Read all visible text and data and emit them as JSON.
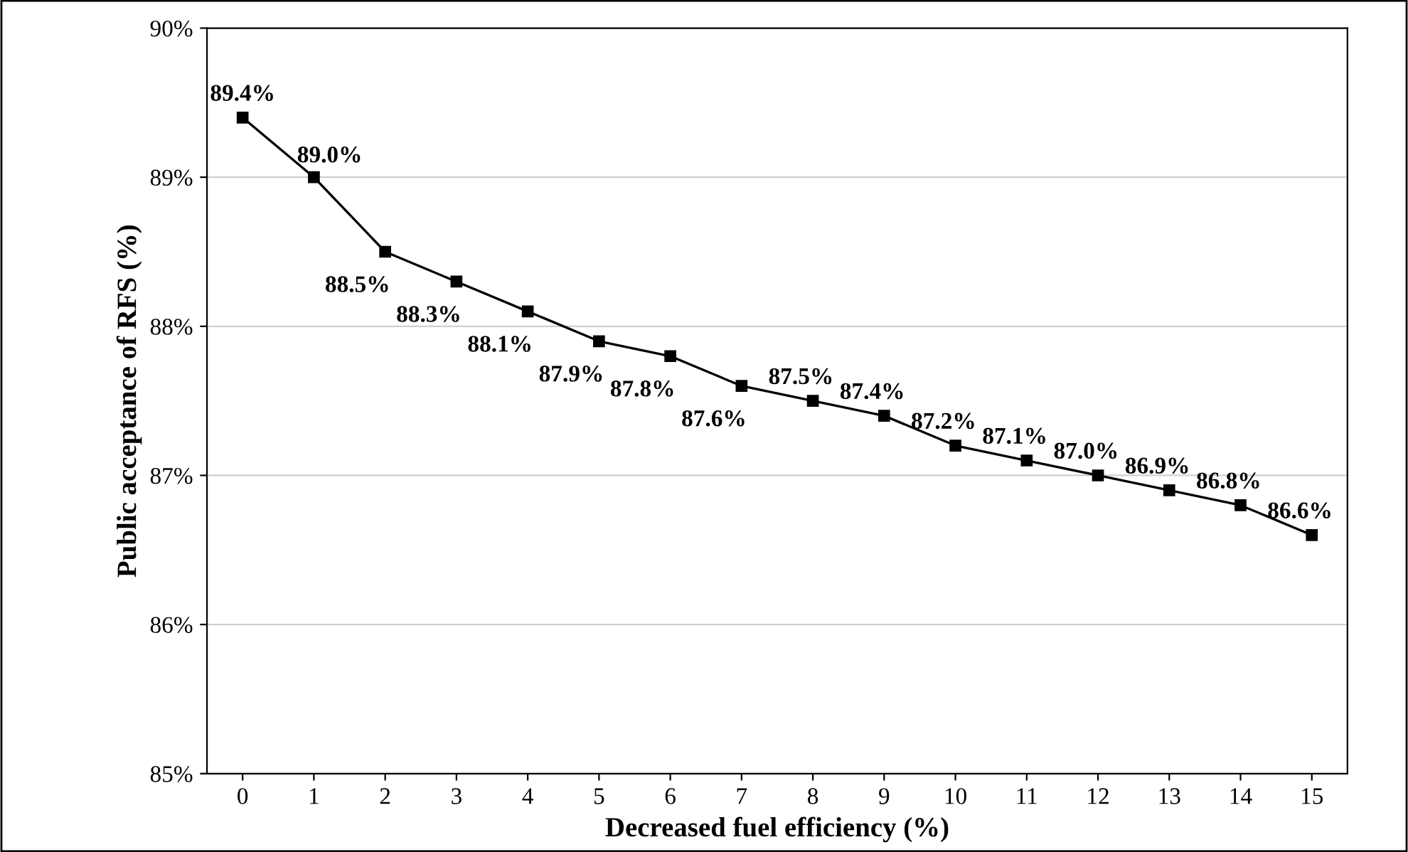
{
  "chart_data": {
    "type": "line",
    "xlabel": "Decreased fuel efficiency (%)",
    "ylabel": "Public acceptance of RFS (%)",
    "categories": [
      "0",
      "1",
      "2",
      "3",
      "4",
      "5",
      "6",
      "7",
      "8",
      "9",
      "10",
      "11",
      "12",
      "13",
      "14",
      "15"
    ],
    "series": [
      {
        "color": "#000000",
        "values": [
          89.4,
          89.0,
          88.5,
          88.3,
          88.1,
          87.9,
          87.8,
          87.6,
          87.5,
          87.4,
          87.2,
          87.1,
          87.0,
          86.9,
          86.8,
          86.6
        ],
        "value_labels": [
          "89.4%",
          "89.0%",
          "88.5%",
          "88.3%",
          "88.1%",
          "87.9%",
          "87.8%",
          "87.6%",
          "87.5%",
          "87.4%",
          "87.2%",
          "87.1%",
          "87.0%",
          "86.9%",
          "86.8%",
          "86.6%"
        ]
      }
    ],
    "ylim": [
      85,
      90
    ],
    "yticks": [
      {
        "value": 85,
        "label": "85%"
      },
      {
        "value": 86,
        "label": "86%"
      },
      {
        "value": 87,
        "label": "87%"
      },
      {
        "value": 88,
        "label": "88%"
      },
      {
        "value": 89,
        "label": "89%"
      },
      {
        "value": 90,
        "label": "90%"
      }
    ],
    "grid": "y",
    "marker": "square",
    "line_style": "solid"
  }
}
